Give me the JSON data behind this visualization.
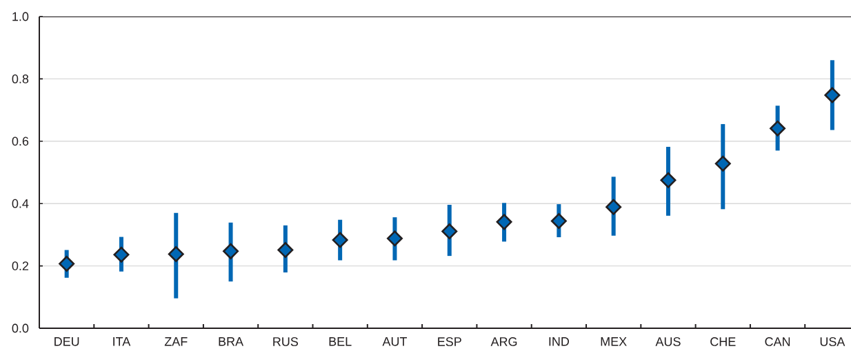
{
  "chart_data": {
    "type": "scatter",
    "categories": [
      "DEU",
      "ITA",
      "ZAF",
      "BRA",
      "RUS",
      "BEL",
      "AUT",
      "ESP",
      "ARG",
      "IND",
      "MEX",
      "AUS",
      "CHE",
      "CAN",
      "USA"
    ],
    "values": [
      0.207,
      0.236,
      0.238,
      0.247,
      0.251,
      0.283,
      0.288,
      0.311,
      0.341,
      0.344,
      0.389,
      0.475,
      0.528,
      0.641,
      0.748
    ],
    "errors": [
      [
        0.162,
        0.251
      ],
      [
        0.182,
        0.293
      ],
      [
        0.096,
        0.37
      ],
      [
        0.15,
        0.339
      ],
      [
        0.179,
        0.33
      ],
      [
        0.218,
        0.348
      ],
      [
        0.218,
        0.356
      ],
      [
        0.232,
        0.396
      ],
      [
        0.278,
        0.402
      ],
      [
        0.292,
        0.398
      ],
      [
        0.297,
        0.486
      ],
      [
        0.361,
        0.582
      ],
      [
        0.382,
        0.655
      ],
      [
        0.57,
        0.714
      ],
      [
        0.636,
        0.86
      ]
    ],
    "color": "#0067b4",
    "marker": "diamond",
    "ylim": [
      0,
      1
    ],
    "yticks": [
      {
        "value": 0,
        "label": "0.0"
      },
      0.2,
      0.4,
      0.6,
      0.8,
      {
        "value": 1,
        "label": "1.0"
      }
    ],
    "grid": "y"
  }
}
